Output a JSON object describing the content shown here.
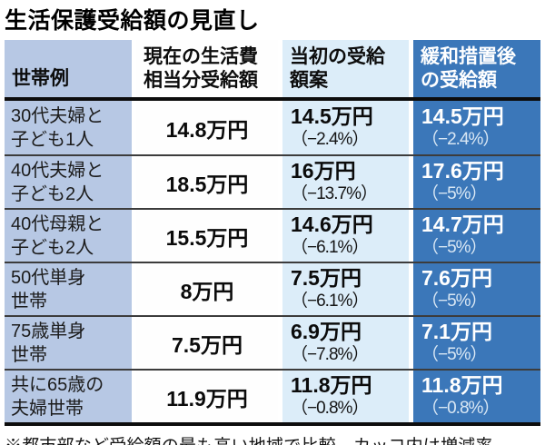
{
  "title": "生活保護受給額の見直し",
  "footnote": "※都市部など受給額の最も高い地域で比較。カッコ内は増減率",
  "colors": {
    "household_column_bg": "#b7c8e4",
    "current_column_bg": "#fefefe",
    "initial_column_bg": "#dcedf9",
    "relaxed_column_bg": "#3b77b9",
    "relaxed_text": "#ffffff",
    "row_separator": "#3c3c3c",
    "thick_rule": "#0d0d0d"
  },
  "table": {
    "headers": {
      "household": "世帯例",
      "current_line1": "現在の生活費",
      "current_line2": "相当分受給額",
      "initial_line1": "当初の受給",
      "initial_line2": "額案",
      "relaxed_line1": "緩和措置後",
      "relaxed_line2": "の受給額"
    },
    "rows": [
      {
        "household_line1": "30代夫婦と",
        "household_line2": "子ども1人",
        "current": "14.8万円",
        "initial_amount": "14.5万円",
        "initial_change": "（−2.4%）",
        "relaxed_amount": "14.5万円",
        "relaxed_change": "（−2.4%）"
      },
      {
        "household_line1": "40代夫婦と",
        "household_line2": "子ども2人",
        "current": "18.5万円",
        "initial_amount": "16万円",
        "initial_change": "（−13.7%）",
        "relaxed_amount": "17.6万円",
        "relaxed_change": "（−5%）"
      },
      {
        "household_line1": "40代母親と",
        "household_line2": "子ども2人",
        "current": "15.5万円",
        "initial_amount": "14.6万円",
        "initial_change": "（−6.1%）",
        "relaxed_amount": "14.7万円",
        "relaxed_change": "（−5%）"
      },
      {
        "household_line1": "50代単身",
        "household_line2": "世帯",
        "current": "8万円",
        "initial_amount": "7.5万円",
        "initial_change": "（−6.1%）",
        "relaxed_amount": "7.6万円",
        "relaxed_change": "（−5%）"
      },
      {
        "household_line1": "75歳単身",
        "household_line2": "世帯",
        "current": "7.5万円",
        "initial_amount": "6.9万円",
        "initial_change": "（−7.8%）",
        "relaxed_amount": "7.1万円",
        "relaxed_change": "（−5%）"
      },
      {
        "household_line1": "共に65歳の",
        "household_line2": "夫婦世帯",
        "current": "11.9万円",
        "initial_amount": "11.8万円",
        "initial_change": "（−0.8%）",
        "relaxed_amount": "11.8万円",
        "relaxed_change": "（−0.8%）"
      }
    ]
  },
  "chart_data": {
    "type": "table",
    "title": "生活保護受給額の見直し",
    "columns": [
      "世帯例",
      "現在の生活費相当分受給額",
      "当初の受給額案",
      "緩和措置後の受給額"
    ],
    "rows": [
      [
        "30代夫婦と子ども1人",
        "14.8万円",
        "14.5万円（−2.4%）",
        "14.5万円（−2.4%）"
      ],
      [
        "40代夫婦と子ども2人",
        "18.5万円",
        "16万円（−13.7%）",
        "17.6万円（−5%）"
      ],
      [
        "40代母親と子ども2人",
        "15.5万円",
        "14.6万円（−6.1%）",
        "14.7万円（−5%）"
      ],
      [
        "50代単身世帯",
        "8万円",
        "7.5万円（−6.1%）",
        "7.6万円（−5%）"
      ],
      [
        "75歳単身世帯",
        "7.5万円",
        "6.9万円（−7.8%）",
        "7.1万円（−5%）"
      ],
      [
        "共に65歳の夫婦世帯",
        "11.9万円",
        "11.8万円（−0.8%）",
        "11.8万円（−0.8%）"
      ]
    ],
    "note": "※都市部など受給額の最も高い地域で比較。カッコ内は増減率"
  }
}
